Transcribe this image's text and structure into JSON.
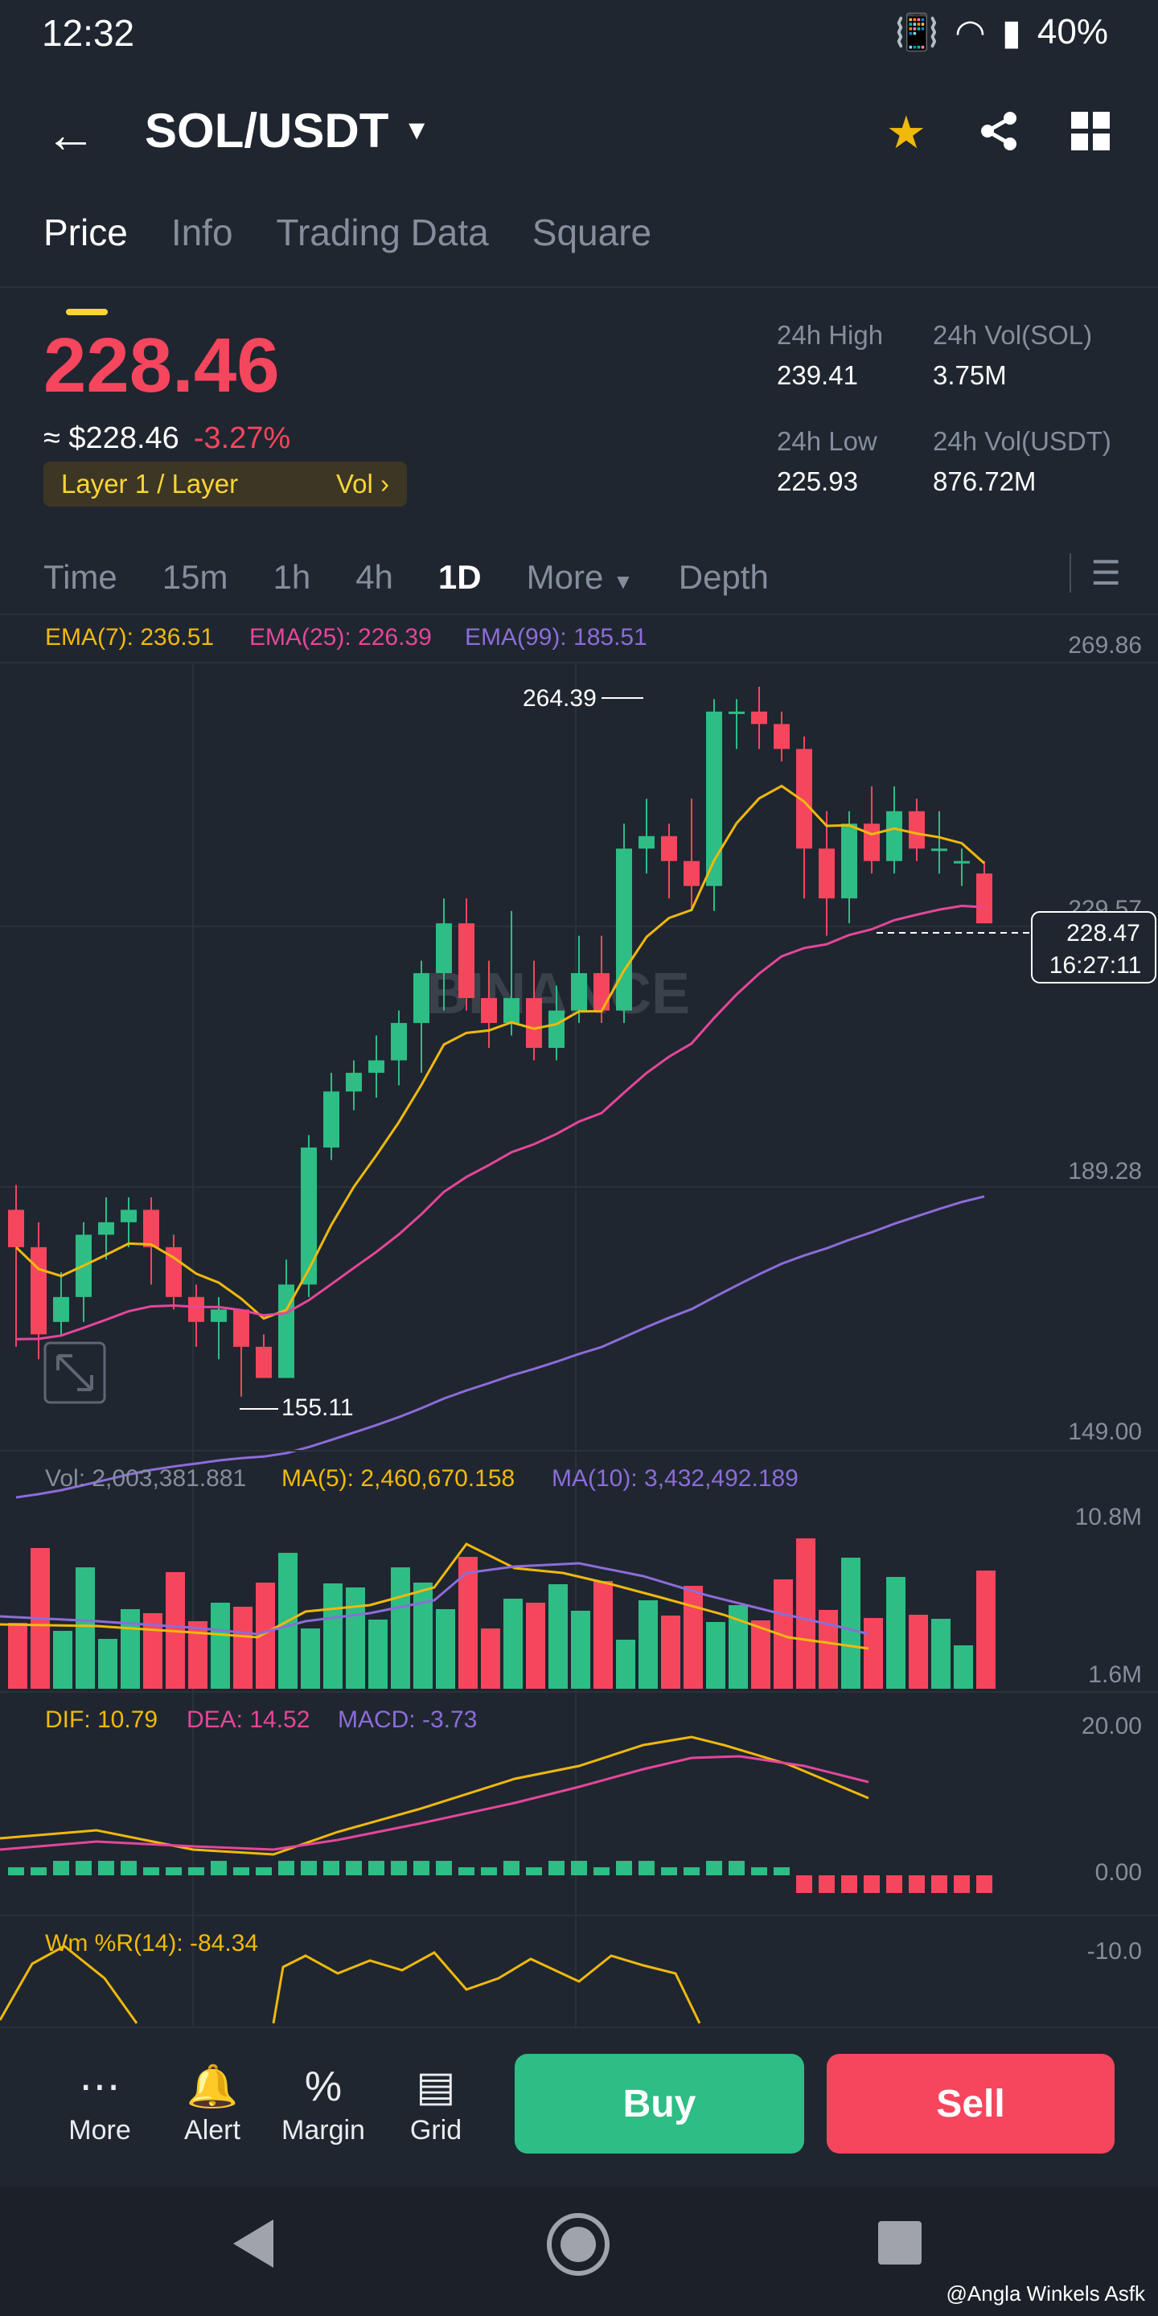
{
  "status": {
    "time": "12:32",
    "battery": "40%"
  },
  "header": {
    "pair": "SOL/USDT"
  },
  "tabs": [
    "Price",
    "Info",
    "Trading Data",
    "Square"
  ],
  "ticker": {
    "last": "228.46",
    "usd": "≈ $228.46",
    "change": "-3.27%",
    "tag": "Layer 1 / Layer",
    "tag_right": "Vol",
    "high_label": "24h High",
    "high": "239.41",
    "low_label": "24h Low",
    "low": "225.93",
    "vol_sol_label": "24h Vol(SOL)",
    "vol_sol": "3.75M",
    "vol_usdt_label": "24h Vol(USDT)",
    "vol_usdt": "876.72M"
  },
  "timeframes": [
    "Time",
    "15m",
    "1h",
    "4h",
    "1D",
    "More",
    "Depth"
  ],
  "active_timeframe": "1D",
  "chart_data": {
    "type": "candlestick",
    "ema_legend": {
      "ema7": "EMA(7): 236.51",
      "ema25": "EMA(25): 226.39",
      "ema99": "EMA(99): 185.51"
    },
    "y_ticks": [
      "269.86",
      "229.57",
      "189.28",
      "149.00"
    ],
    "ylim": [
      149.0,
      269.86
    ],
    "max_label": "264.39",
    "min_label": "155.11",
    "current_price": "228.47",
    "countdown": "16:27:11",
    "watermark": "BINANCE",
    "candles": [
      [
        182,
        176,
        186,
        160
      ],
      [
        176,
        162,
        180,
        158
      ],
      [
        164,
        168,
        172,
        162
      ],
      [
        168,
        178,
        180,
        164
      ],
      [
        178,
        180,
        184,
        174
      ],
      [
        180,
        182,
        184,
        176
      ],
      [
        182,
        176,
        184,
        170
      ],
      [
        176,
        168,
        178,
        166
      ],
      [
        168,
        164,
        170,
        160
      ],
      [
        164,
        166,
        168,
        158
      ],
      [
        166,
        160,
        166,
        152
      ],
      [
        160,
        155,
        162,
        155
      ],
      [
        155,
        170,
        174,
        155
      ],
      [
        170,
        192,
        194,
        168
      ],
      [
        192,
        201,
        204,
        190
      ],
      [
        201,
        204,
        206,
        198
      ],
      [
        204,
        206,
        210,
        200
      ],
      [
        206,
        212,
        214,
        202
      ],
      [
        212,
        220,
        222,
        204
      ],
      [
        220,
        228,
        232,
        214
      ],
      [
        228,
        216,
        232,
        214
      ],
      [
        216,
        212,
        222,
        208
      ],
      [
        212,
        216,
        230,
        210
      ],
      [
        216,
        208,
        222,
        206
      ],
      [
        208,
        214,
        218,
        206
      ],
      [
        214,
        220,
        226,
        212
      ],
      [
        220,
        214,
        226,
        212
      ],
      [
        214,
        240,
        244,
        212
      ],
      [
        240,
        242,
        248,
        236
      ],
      [
        242,
        238,
        244,
        232
      ],
      [
        238,
        234,
        248,
        230
      ],
      [
        234,
        262,
        264,
        230
      ],
      [
        262,
        262,
        264,
        256
      ],
      [
        262,
        260,
        266,
        256
      ],
      [
        260,
        256,
        262,
        254
      ],
      [
        256,
        240,
        258,
        232
      ],
      [
        240,
        232,
        246,
        226
      ],
      [
        232,
        244,
        246,
        228
      ],
      [
        244,
        238,
        250,
        236
      ],
      [
        238,
        246,
        250,
        236
      ],
      [
        246,
        240,
        248,
        238
      ],
      [
        240,
        240,
        246,
        236
      ],
      [
        238,
        238,
        240,
        234
      ],
      [
        236,
        228,
        238,
        228
      ]
    ],
    "vol_legend": {
      "vol": "Vol: 2,003,381.881",
      "ma5": "MA(5): 2,460,670.158",
      "ma10": "MA(10): 3,432,492.189"
    },
    "vol_ticks": [
      "10.8M",
      "1.6M"
    ],
    "macd_legend": {
      "dif": "DIF: 10.79",
      "dea": "DEA: 14.52",
      "macd": "MACD: -3.73"
    },
    "macd_ticks": [
      "20.00",
      "0.00"
    ],
    "wr_legend": "Wm %R(14): -84.34",
    "wr_ticks": [
      "-10.0"
    ]
  },
  "bottom": {
    "more": "More",
    "alert": "Alert",
    "margin": "Margin",
    "grid": "Grid",
    "buy": "Buy",
    "sell": "Sell"
  },
  "credit": "@Angla Winkels Asfk",
  "colors": {
    "up": "#2ebd85",
    "down": "#f6465d",
    "accent": "#fcd535",
    "ema7": "#f0b90b",
    "ema25": "#e5469a",
    "ema99": "#8d6cd9"
  }
}
